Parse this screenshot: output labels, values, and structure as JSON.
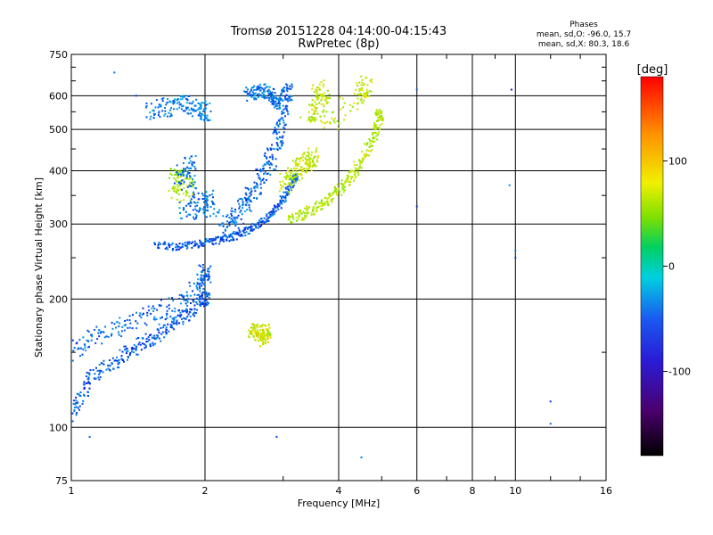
{
  "chart_data": {
    "type": "scatter",
    "title": "Tromsø 20151228 04:14:00-04:15:43",
    "subtitle": "RwPretec (8p)",
    "xlabel": "Frequency [MHz]",
    "ylabel": "Stationary phase Virtual Height [km]",
    "x_scale": "log",
    "y_scale": "log",
    "xlim": [
      1,
      16
    ],
    "ylim": [
      75,
      750
    ],
    "x_ticks": [
      1,
      2,
      4,
      6,
      8,
      10,
      16
    ],
    "x_minor_ticks": [
      3,
      5,
      7,
      9,
      12,
      14
    ],
    "y_ticks": [
      75,
      100,
      200,
      300,
      400,
      500,
      600,
      750
    ],
    "y_minor_ticks": [
      150,
      250,
      350,
      450,
      550,
      650,
      700
    ],
    "grid": true,
    "info_box": {
      "title": "Phases",
      "line1": "mean, sd,O: -96.0, 15.7",
      "line2": "mean, sd,X: 80.3, 18.6"
    },
    "colorbar": {
      "label": "[deg]",
      "range": [
        -180,
        180
      ],
      "ticks": [
        100,
        0,
        -100
      ]
    },
    "traces": [
      {
        "id": "lowE_O",
        "phase": -100,
        "jitter": 0.008,
        "points": [
          [
            1.0,
            105
          ],
          [
            1.05,
            118
          ],
          [
            1.1,
            130
          ],
          [
            1.2,
            138
          ],
          [
            1.3,
            145
          ],
          [
            1.4,
            155
          ],
          [
            1.5,
            160
          ],
          [
            1.6,
            168
          ],
          [
            1.7,
            175
          ],
          [
            1.8,
            182
          ],
          [
            1.9,
            195
          ],
          [
            2.0,
            200
          ]
        ]
      },
      {
        "id": "lowE_O_upper",
        "phase": -95,
        "jitter": 0.01,
        "points": [
          [
            1.0,
            150
          ],
          [
            1.1,
            160
          ],
          [
            1.25,
            170
          ],
          [
            1.4,
            180
          ],
          [
            1.6,
            188
          ],
          [
            1.8,
            200
          ],
          [
            1.95,
            215
          ],
          [
            2.0,
            230
          ]
        ]
      },
      {
        "id": "F1_O_base",
        "phase": -100,
        "jitter": 0.004,
        "points": [
          [
            1.55,
            268
          ],
          [
            1.7,
            265
          ],
          [
            1.85,
            267
          ],
          [
            2.0,
            272
          ],
          [
            2.15,
            275
          ],
          [
            2.3,
            280
          ],
          [
            2.45,
            287
          ],
          [
            2.6,
            297
          ],
          [
            2.75,
            310
          ],
          [
            2.9,
            325
          ],
          [
            3.0,
            345
          ],
          [
            3.1,
            365
          ],
          [
            3.2,
            385
          ]
        ]
      },
      {
        "id": "F1_O_cusp",
        "phase": -95,
        "jitter": 0.01,
        "points": [
          [
            2.2,
            290
          ],
          [
            2.3,
            305
          ],
          [
            2.4,
            320
          ],
          [
            2.5,
            340
          ],
          [
            2.6,
            365
          ],
          [
            2.7,
            390
          ],
          [
            2.8,
            420
          ],
          [
            2.9,
            460
          ],
          [
            2.95,
            510
          ],
          [
            3.0,
            560
          ],
          [
            3.05,
            610
          ]
        ]
      },
      {
        "id": "F2_O",
        "phase": -90,
        "jitter": 0.008,
        "points": [
          [
            2.5,
            600
          ],
          [
            2.6,
            610
          ],
          [
            2.7,
            615
          ],
          [
            2.8,
            605
          ],
          [
            2.9,
            580
          ]
        ]
      },
      {
        "id": "F_O_upper",
        "phase": -85,
        "jitter": 0.01,
        "points": [
          [
            1.5,
            550
          ],
          [
            1.6,
            560
          ],
          [
            1.7,
            570
          ],
          [
            1.8,
            575
          ],
          [
            1.9,
            560
          ],
          [
            2.0,
            550
          ]
        ]
      },
      {
        "id": "F_X",
        "phase": 85,
        "jitter": 0.006,
        "points": [
          [
            3.1,
            310
          ],
          [
            3.3,
            315
          ],
          [
            3.5,
            325
          ],
          [
            3.7,
            335
          ],
          [
            3.9,
            350
          ],
          [
            4.1,
            370
          ],
          [
            4.3,
            395
          ],
          [
            4.5,
            420
          ],
          [
            4.7,
            460
          ],
          [
            4.85,
            500
          ],
          [
            4.95,
            540
          ]
        ]
      },
      {
        "id": "F_X_lobe",
        "phase": 90,
        "jitter": 0.01,
        "points": [
          [
            3.0,
            370
          ],
          [
            3.1,
            385
          ],
          [
            3.2,
            400
          ],
          [
            3.3,
            410
          ],
          [
            3.4,
            420
          ],
          [
            3.5,
            430
          ]
        ]
      },
      {
        "id": "Es_X",
        "phase": 95,
        "jitter": 0.008,
        "points": [
          [
            2.55,
            165
          ],
          [
            2.6,
            170
          ],
          [
            2.65,
            165
          ],
          [
            2.7,
            160
          ],
          [
            2.75,
            168
          ]
        ]
      },
      {
        "id": "E_X_misc",
        "phase": 80,
        "jitter": 0.015,
        "points": [
          [
            1.7,
            370
          ],
          [
            1.75,
            380
          ],
          [
            1.8,
            360
          ]
        ]
      },
      {
        "id": "Scatter_O_mid",
        "phase": -90,
        "jitter": 0.012,
        "points": [
          [
            1.8,
            320
          ],
          [
            1.9,
            330
          ],
          [
            2.0,
            340
          ],
          [
            2.1,
            325
          ],
          [
            1.75,
            390
          ],
          [
            1.85,
            410
          ]
        ]
      },
      {
        "id": "Cusp_X",
        "phase": 90,
        "jitter": 0.012,
        "points": [
          [
            3.4,
            560
          ],
          [
            3.55,
            540
          ],
          [
            3.7,
            600
          ],
          [
            3.6,
            620
          ],
          [
            3.8,
            520
          ],
          [
            4.5,
            600
          ],
          [
            4.6,
            630
          ]
        ]
      },
      {
        "id": "Outliers",
        "phase": -100,
        "jitter": 0.0,
        "points": [
          [
            1.25,
            680
          ],
          [
            1.4,
            600
          ],
          [
            6.0,
            620
          ],
          [
            6.0,
            330
          ],
          [
            9.8,
            620
          ],
          [
            9.7,
            370
          ],
          [
            10.0,
            250
          ],
          [
            10.0,
            260
          ],
          [
            12.0,
            115
          ],
          [
            12.0,
            102
          ],
          [
            4.5,
            85
          ],
          [
            2.9,
            95
          ],
          [
            1.1,
            95
          ]
        ]
      }
    ]
  }
}
